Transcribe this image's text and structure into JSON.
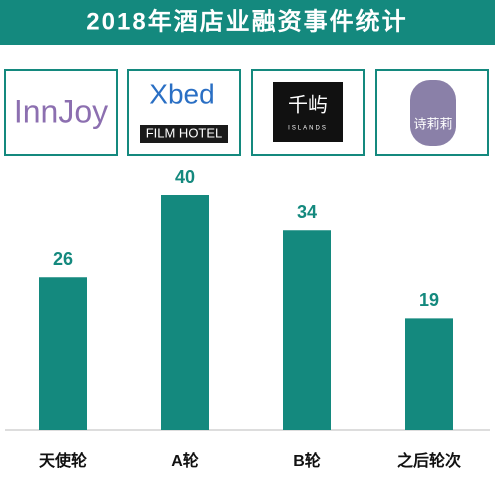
{
  "chart_data": {
    "type": "bar",
    "title": "2018年酒店业融资事件统计",
    "categories": [
      "天使轮",
      "A轮",
      "B轮",
      "之后轮次"
    ],
    "values": [
      26,
      40,
      34,
      19
    ],
    "color": "#14897e",
    "ylim": [
      0,
      40
    ]
  },
  "logos": [
    [
      "InnJoy"
    ],
    [
      "Xbed",
      "FILM HOTEL"
    ],
    [
      "千屿",
      "ISLANDS"
    ],
    [
      "诗莉莉"
    ]
  ]
}
